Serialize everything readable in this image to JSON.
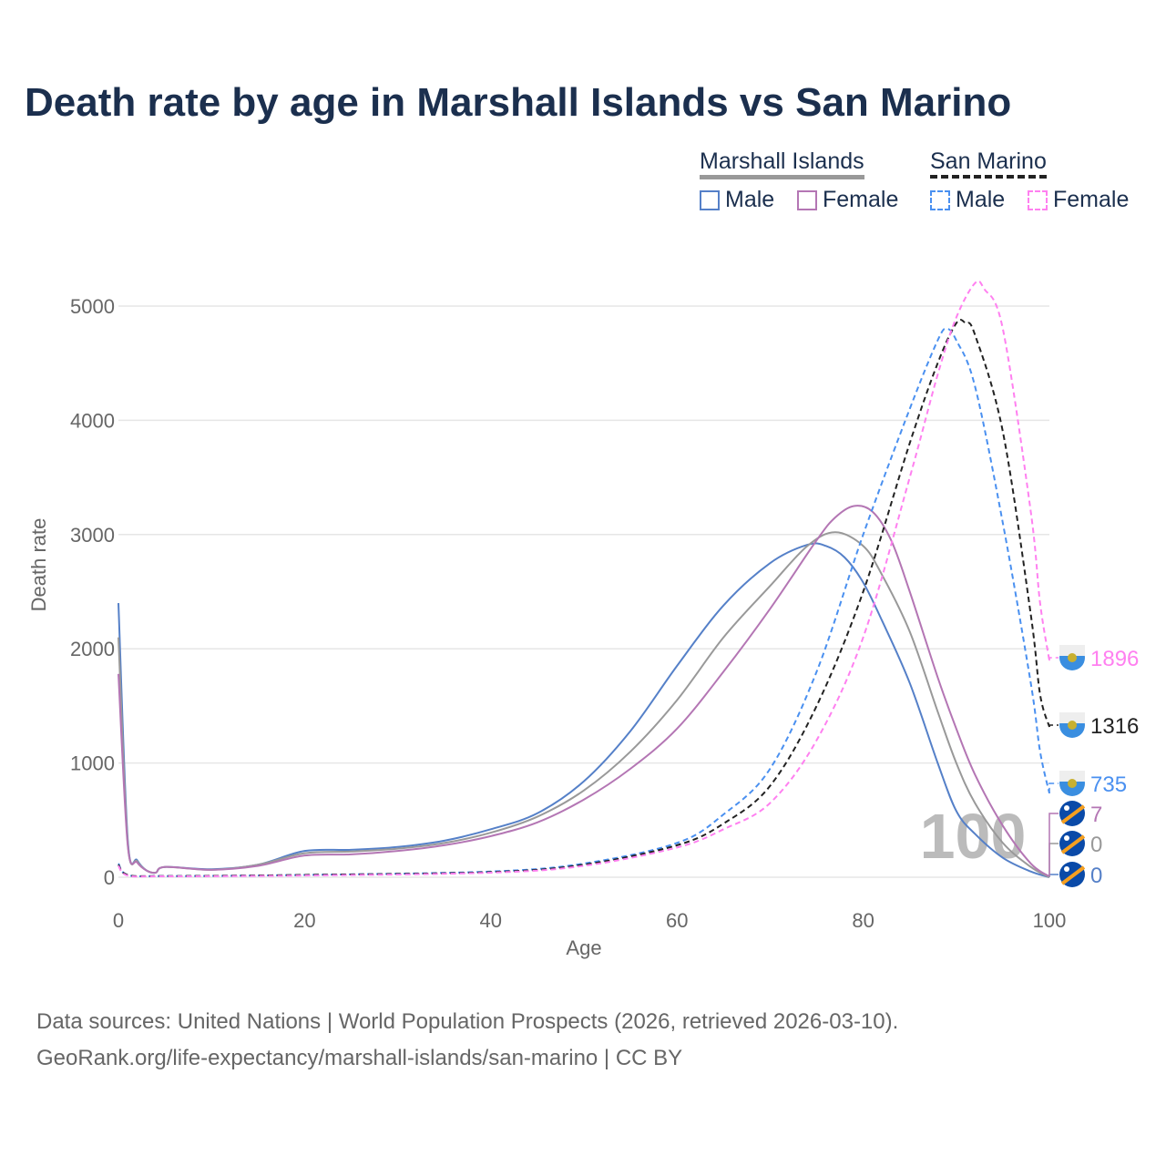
{
  "title": "Death rate by age in Marshall Islands vs San Marino",
  "legend": {
    "groups": [
      {
        "name": "Marshall Islands",
        "color": "#999999",
        "dashed": false
      },
      {
        "name": "San Marino",
        "color": "#222222",
        "dashed": true
      }
    ],
    "items": [
      {
        "label": "Male",
        "color": "#5580c8",
        "dashed": false
      },
      {
        "label": "Female",
        "color": "#b476b4",
        "dashed": false
      },
      {
        "label": "Male",
        "color": "#4a90f0",
        "dashed": true
      },
      {
        "label": "Female",
        "color": "#ff80f0",
        "dashed": true
      }
    ]
  },
  "source_line1": "Data sources: United Nations | World Population Prospects (2026, retrieved 2026-03-10).",
  "source_line2": "GeoRank.org/life-expectancy/marshall-islands/san-marino | CC BY",
  "watermark": "100",
  "chart_data": {
    "type": "line",
    "title": "Death rate by age in Marshall Islands vs San Marino",
    "xlabel": "Age",
    "ylabel": "Death rate",
    "xlim": [
      0,
      100
    ],
    "ylim": [
      0,
      5000
    ],
    "xticks": [
      "0",
      "20",
      "40",
      "60",
      "80",
      "100"
    ],
    "yticks": [
      "0",
      "1000",
      "2000",
      "3000",
      "4000",
      "5000"
    ],
    "grid": true,
    "series": [
      {
        "name": "Marshall Islands Male",
        "color": "#5580c8",
        "dashed": false,
        "end_label": "0",
        "x": [
          0,
          1,
          2,
          3,
          4,
          5,
          10,
          15,
          20,
          25,
          30,
          35,
          40,
          45,
          50,
          55,
          60,
          65,
          70,
          74,
          76,
          78,
          80,
          82,
          85,
          88,
          90,
          92,
          95,
          98,
          100
        ],
        "y": [
          2400,
          330,
          150,
          60,
          40,
          90,
          70,
          110,
          230,
          240,
          265,
          320,
          420,
          560,
          840,
          1280,
          1850,
          2380,
          2750,
          2910,
          2900,
          2800,
          2580,
          2250,
          1700,
          1000,
          580,
          380,
          170,
          50,
          0
        ]
      },
      {
        "name": "Marshall Islands Both",
        "color": "#999999",
        "dashed": false,
        "end_label": "0",
        "x": [
          0,
          1,
          2,
          3,
          4,
          5,
          10,
          15,
          20,
          25,
          30,
          35,
          40,
          45,
          50,
          55,
          60,
          65,
          70,
          74,
          77,
          80,
          82,
          85,
          88,
          90,
          92,
          95,
          98,
          100
        ],
        "y": [
          2100,
          300,
          140,
          60,
          40,
          90,
          65,
          110,
          210,
          225,
          250,
          300,
          390,
          530,
          760,
          1100,
          1550,
          2100,
          2550,
          2900,
          3020,
          2900,
          2650,
          2150,
          1450,
          1000,
          650,
          300,
          90,
          0
        ]
      },
      {
        "name": "Marshall Islands Female",
        "color": "#b476b4",
        "dashed": false,
        "end_label": "7",
        "x": [
          0,
          1,
          2,
          3,
          4,
          5,
          10,
          15,
          20,
          25,
          30,
          35,
          40,
          45,
          50,
          55,
          60,
          65,
          70,
          75,
          77,
          79,
          81,
          83,
          85,
          88,
          90,
          92,
          95,
          98,
          100
        ],
        "y": [
          1780,
          280,
          130,
          60,
          40,
          90,
          65,
          100,
          190,
          200,
          230,
          280,
          360,
          480,
          680,
          950,
          1300,
          1800,
          2350,
          2950,
          3150,
          3250,
          3200,
          2950,
          2500,
          1750,
          1300,
          900,
          450,
          120,
          7
        ]
      },
      {
        "name": "San Marino Male",
        "color": "#4a90f0",
        "dashed": true,
        "end_label": "735",
        "x": [
          0,
          1,
          5,
          20,
          40,
          50,
          60,
          65,
          70,
          75,
          80,
          85,
          88,
          89,
          90,
          92,
          95,
          98,
          99,
          100
        ],
        "y": [
          120,
          20,
          10,
          20,
          50,
          120,
          300,
          550,
          950,
          1800,
          3000,
          4100,
          4700,
          4800,
          4700,
          4300,
          3100,
          1700,
          1100,
          735
        ]
      },
      {
        "name": "San Marino Both",
        "color": "#222222",
        "dashed": true,
        "end_label": "1316",
        "x": [
          0,
          1,
          5,
          20,
          40,
          50,
          60,
          65,
          70,
          75,
          80,
          85,
          88,
          90,
          91,
          92,
          95,
          98,
          99,
          100
        ],
        "y": [
          110,
          20,
          10,
          20,
          45,
          110,
          280,
          470,
          800,
          1500,
          2500,
          3800,
          4500,
          4850,
          4850,
          4750,
          3900,
          2300,
          1600,
          1316
        ]
      },
      {
        "name": "San Marino Female",
        "color": "#ff80f0",
        "dashed": true,
        "end_label": "1896",
        "x": [
          0,
          1,
          5,
          20,
          40,
          50,
          60,
          65,
          70,
          75,
          80,
          85,
          88,
          90,
          92,
          93,
          95,
          98,
          99,
          100
        ],
        "y": [
          100,
          15,
          8,
          15,
          40,
          100,
          260,
          420,
          650,
          1200,
          2100,
          3500,
          4400,
          4900,
          5200,
          5150,
          4800,
          3200,
          2400,
          1896
        ]
      }
    ]
  }
}
